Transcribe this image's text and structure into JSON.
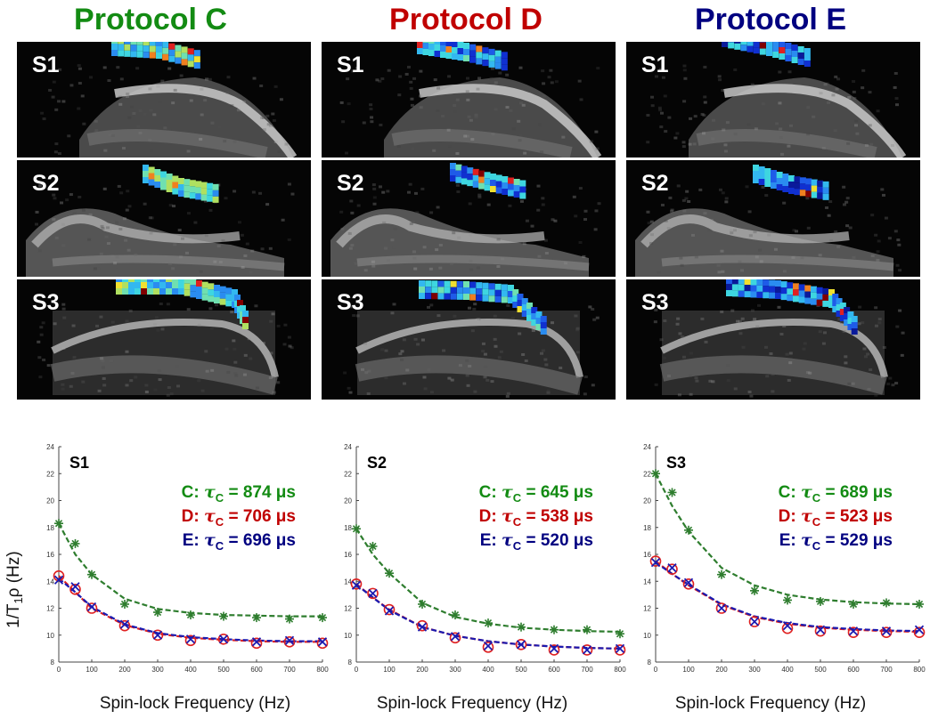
{
  "protocols": [
    {
      "title": "Protocol C",
      "color": "#138b13"
    },
    {
      "title": "Protocol D",
      "color": "#c00000"
    },
    {
      "title": "Protocol E",
      "color": "#000080"
    }
  ],
  "panel_labels": [
    "S1",
    "S2",
    "S3"
  ],
  "shared_ylabel_base": "1/T",
  "shared_ylabel_sub": "1",
  "shared_ylabel_tail": "ρ (Hz)",
  "chart_data": [
    {
      "type": "scatter",
      "title": "S1",
      "xlabel": "Spin-lock Frequency (Hz)",
      "ylabel": "1/T1ρ (Hz)",
      "xlim": [
        0,
        800
      ],
      "ylim": [
        8,
        24
      ],
      "xticks": [
        0,
        100,
        200,
        300,
        400,
        500,
        600,
        700,
        800
      ],
      "yticks": [
        8,
        10,
        12,
        14,
        16,
        18,
        20,
        22,
        24
      ],
      "x": [
        0,
        50,
        100,
        200,
        300,
        400,
        500,
        600,
        700,
        800
      ],
      "series": [
        {
          "name": "C",
          "color": "#2e7d2e",
          "marker": "asterisk",
          "values": [
            18.3,
            16.8,
            14.5,
            12.3,
            11.7,
            11.5,
            11.4,
            11.3,
            11.2,
            11.3
          ],
          "fit": [
            18.3,
            16.0,
            14.5,
            12.7,
            11.95,
            11.65,
            11.5,
            11.45,
            11.4,
            11.4
          ]
        },
        {
          "name": "D",
          "color": "#e02020",
          "marker": "circle",
          "values": [
            14.4,
            13.4,
            12.0,
            10.7,
            10.0,
            9.6,
            9.7,
            9.4,
            9.5,
            9.4
          ],
          "fit": [
            14.4,
            13.2,
            12.0,
            10.75,
            10.1,
            9.8,
            9.65,
            9.55,
            9.5,
            9.5
          ]
        },
        {
          "name": "E",
          "color": "#1a1ab0",
          "marker": "x",
          "values": [
            14.1,
            13.6,
            12.1,
            10.8,
            10.0,
            9.7,
            9.7,
            9.5,
            9.6,
            9.5
          ],
          "fit": [
            14.2,
            13.2,
            12.1,
            10.8,
            10.15,
            9.85,
            9.7,
            9.6,
            9.55,
            9.55
          ]
        }
      ],
      "annotations": [
        {
          "prefix": "C: ",
          "symbol": "τ",
          "sub": "C",
          "value": " = 874 μs",
          "color": "#138b13"
        },
        {
          "prefix": "D: ",
          "symbol": "τ",
          "sub": "C",
          "value": " = 706 μs",
          "color": "#c00000"
        },
        {
          "prefix": "E: ",
          "symbol": "τ",
          "sub": "C",
          "value": " = 696 μs",
          "color": "#000080"
        }
      ]
    },
    {
      "type": "scatter",
      "title": "S2",
      "xlabel": "Spin-lock Frequency (Hz)",
      "ylabel": "1/T1ρ (Hz)",
      "xlim": [
        0,
        800
      ],
      "ylim": [
        8,
        24
      ],
      "xticks": [
        0,
        100,
        200,
        300,
        400,
        500,
        600,
        700,
        800
      ],
      "yticks": [
        8,
        10,
        12,
        14,
        16,
        18,
        20,
        22,
        24
      ],
      "x": [
        0,
        50,
        100,
        200,
        300,
        400,
        500,
        600,
        700,
        800
      ],
      "series": [
        {
          "name": "C",
          "color": "#2e7d2e",
          "marker": "asterisk",
          "values": [
            17.9,
            16.6,
            14.6,
            12.3,
            11.5,
            10.9,
            10.6,
            10.4,
            10.4,
            10.1
          ],
          "fit": [
            17.9,
            16.0,
            14.6,
            12.4,
            11.35,
            10.85,
            10.55,
            10.4,
            10.3,
            10.25
          ]
        },
        {
          "name": "D",
          "color": "#e02020",
          "marker": "circle",
          "values": [
            13.8,
            13.1,
            11.9,
            10.7,
            9.8,
            9.1,
            9.3,
            8.9,
            8.9,
            8.9
          ],
          "fit": [
            13.8,
            12.8,
            11.9,
            10.6,
            9.95,
            9.55,
            9.3,
            9.15,
            9.05,
            9.0
          ]
        },
        {
          "name": "E",
          "color": "#1a1ab0",
          "marker": "x",
          "values": [
            13.7,
            13.1,
            11.8,
            10.6,
            9.9,
            9.2,
            9.3,
            9.0,
            8.9,
            9.0
          ],
          "fit": [
            13.75,
            12.8,
            11.85,
            10.6,
            9.95,
            9.55,
            9.3,
            9.15,
            9.05,
            9.0
          ]
        }
      ],
      "annotations": [
        {
          "prefix": "C: ",
          "symbol": "τ",
          "sub": "C",
          "value": " = 645 μs",
          "color": "#138b13"
        },
        {
          "prefix": "D: ",
          "symbol": "τ",
          "sub": "C",
          "value": " = 538 μs",
          "color": "#c00000"
        },
        {
          "prefix": "E: ",
          "symbol": "τ",
          "sub": "C",
          "value": " = 520 μs",
          "color": "#000080"
        }
      ]
    },
    {
      "type": "scatter",
      "title": "S3",
      "xlabel": "Spin-lock Frequency (Hz)",
      "ylabel": "1/T1ρ (Hz)",
      "xlim": [
        0,
        800
      ],
      "ylim": [
        8,
        24
      ],
      "xticks": [
        0,
        100,
        200,
        300,
        400,
        500,
        600,
        700,
        800
      ],
      "yticks": [
        8,
        10,
        12,
        14,
        16,
        18,
        20,
        22,
        24
      ],
      "x": [
        0,
        50,
        100,
        200,
        300,
        400,
        500,
        600,
        700,
        800
      ],
      "series": [
        {
          "name": "C",
          "color": "#2e7d2e",
          "marker": "asterisk",
          "values": [
            22.0,
            20.6,
            17.8,
            14.5,
            13.3,
            12.6,
            12.5,
            12.3,
            12.4,
            12.3
          ],
          "fit": [
            22.0,
            19.6,
            17.7,
            15.0,
            13.7,
            13.0,
            12.65,
            12.45,
            12.35,
            12.3
          ]
        },
        {
          "name": "D",
          "color": "#e02020",
          "marker": "circle",
          "values": [
            15.5,
            14.9,
            13.8,
            12.0,
            11.0,
            10.5,
            10.3,
            10.2,
            10.2,
            10.2
          ],
          "fit": [
            15.5,
            14.55,
            13.7,
            12.25,
            11.35,
            10.85,
            10.55,
            10.4,
            10.3,
            10.25
          ]
        },
        {
          "name": "E",
          "color": "#1a1ab0",
          "marker": "x",
          "values": [
            15.4,
            15.0,
            13.9,
            12.0,
            11.0,
            10.7,
            10.4,
            10.3,
            10.3,
            10.4
          ],
          "fit": [
            15.4,
            14.55,
            13.75,
            12.3,
            11.4,
            10.9,
            10.6,
            10.45,
            10.35,
            10.3
          ]
        }
      ],
      "annotations": [
        {
          "prefix": "C: ",
          "symbol": "τ",
          "sub": "C",
          "value": " = 689 μs",
          "color": "#138b13"
        },
        {
          "prefix": "D: ",
          "symbol": "τ",
          "sub": "C",
          "value": " = 523 μs",
          "color": "#c00000"
        },
        {
          "prefix": "E: ",
          "symbol": "τ",
          "sub": "C",
          "value": " = 529 μs",
          "color": "#000080"
        }
      ]
    }
  ]
}
